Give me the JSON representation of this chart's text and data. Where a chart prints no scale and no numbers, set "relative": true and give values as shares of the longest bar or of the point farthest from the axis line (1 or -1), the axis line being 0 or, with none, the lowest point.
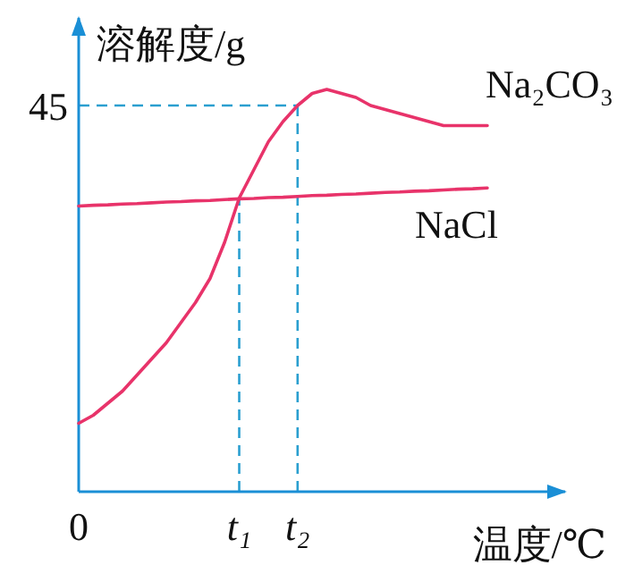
{
  "chart_data": {
    "type": "line",
    "relative": true,
    "xlabel": "温度/℃",
    "ylabel": "溶解度/g",
    "categories": [
      "0",
      null,
      null,
      null,
      null,
      null,
      null,
      null,
      null,
      null,
      null,
      "t₁",
      null,
      null,
      null,
      "t₂",
      null,
      null,
      null,
      null,
      null,
      null,
      null,
      null,
      null,
      null,
      null,
      null,
      null
    ],
    "grid": false,
    "legend": false,
    "marker": "none",
    "line_style": "solid",
    "series": [
      {
        "name": "Na₂CO₃",
        "color": "#e8336a",
        "values": [
          0.17,
          0.19,
          0.22,
          0.25,
          0.29,
          0.33,
          0.37,
          0.42,
          0.47,
          0.53,
          0.62,
          0.73,
          0.8,
          0.87,
          0.92,
          0.96,
          0.99,
          1,
          0.99,
          0.98,
          0.96,
          0.95,
          0.94,
          0.93,
          0.92,
          0.91,
          0.91,
          0.91,
          0.91
        ]
      },
      {
        "name": "NaCl",
        "color": "#e8336a",
        "values": [
          0.71,
          0.712,
          0.713,
          0.715,
          0.716,
          0.718,
          0.72,
          0.721,
          0.723,
          0.724,
          0.726,
          0.728,
          0.729,
          0.731,
          0.732,
          0.734,
          0.736,
          0.737,
          0.739,
          0.74,
          0.742,
          0.744,
          0.745,
          0.747,
          0.748,
          0.75,
          0.752,
          0.753,
          0.755
        ]
      }
    ],
    "annotations": [
      {
        "text": "45",
        "x": "t₂",
        "y": 0.96
      }
    ],
    "ref_lines": [
      {
        "axis": "x",
        "value": "t₁",
        "color": "#2a9fd0",
        "line_style": "dashed"
      },
      {
        "axis": "x",
        "value": "t₂",
        "color": "#2a9fd0",
        "line_style": "dashed"
      }
    ]
  }
}
